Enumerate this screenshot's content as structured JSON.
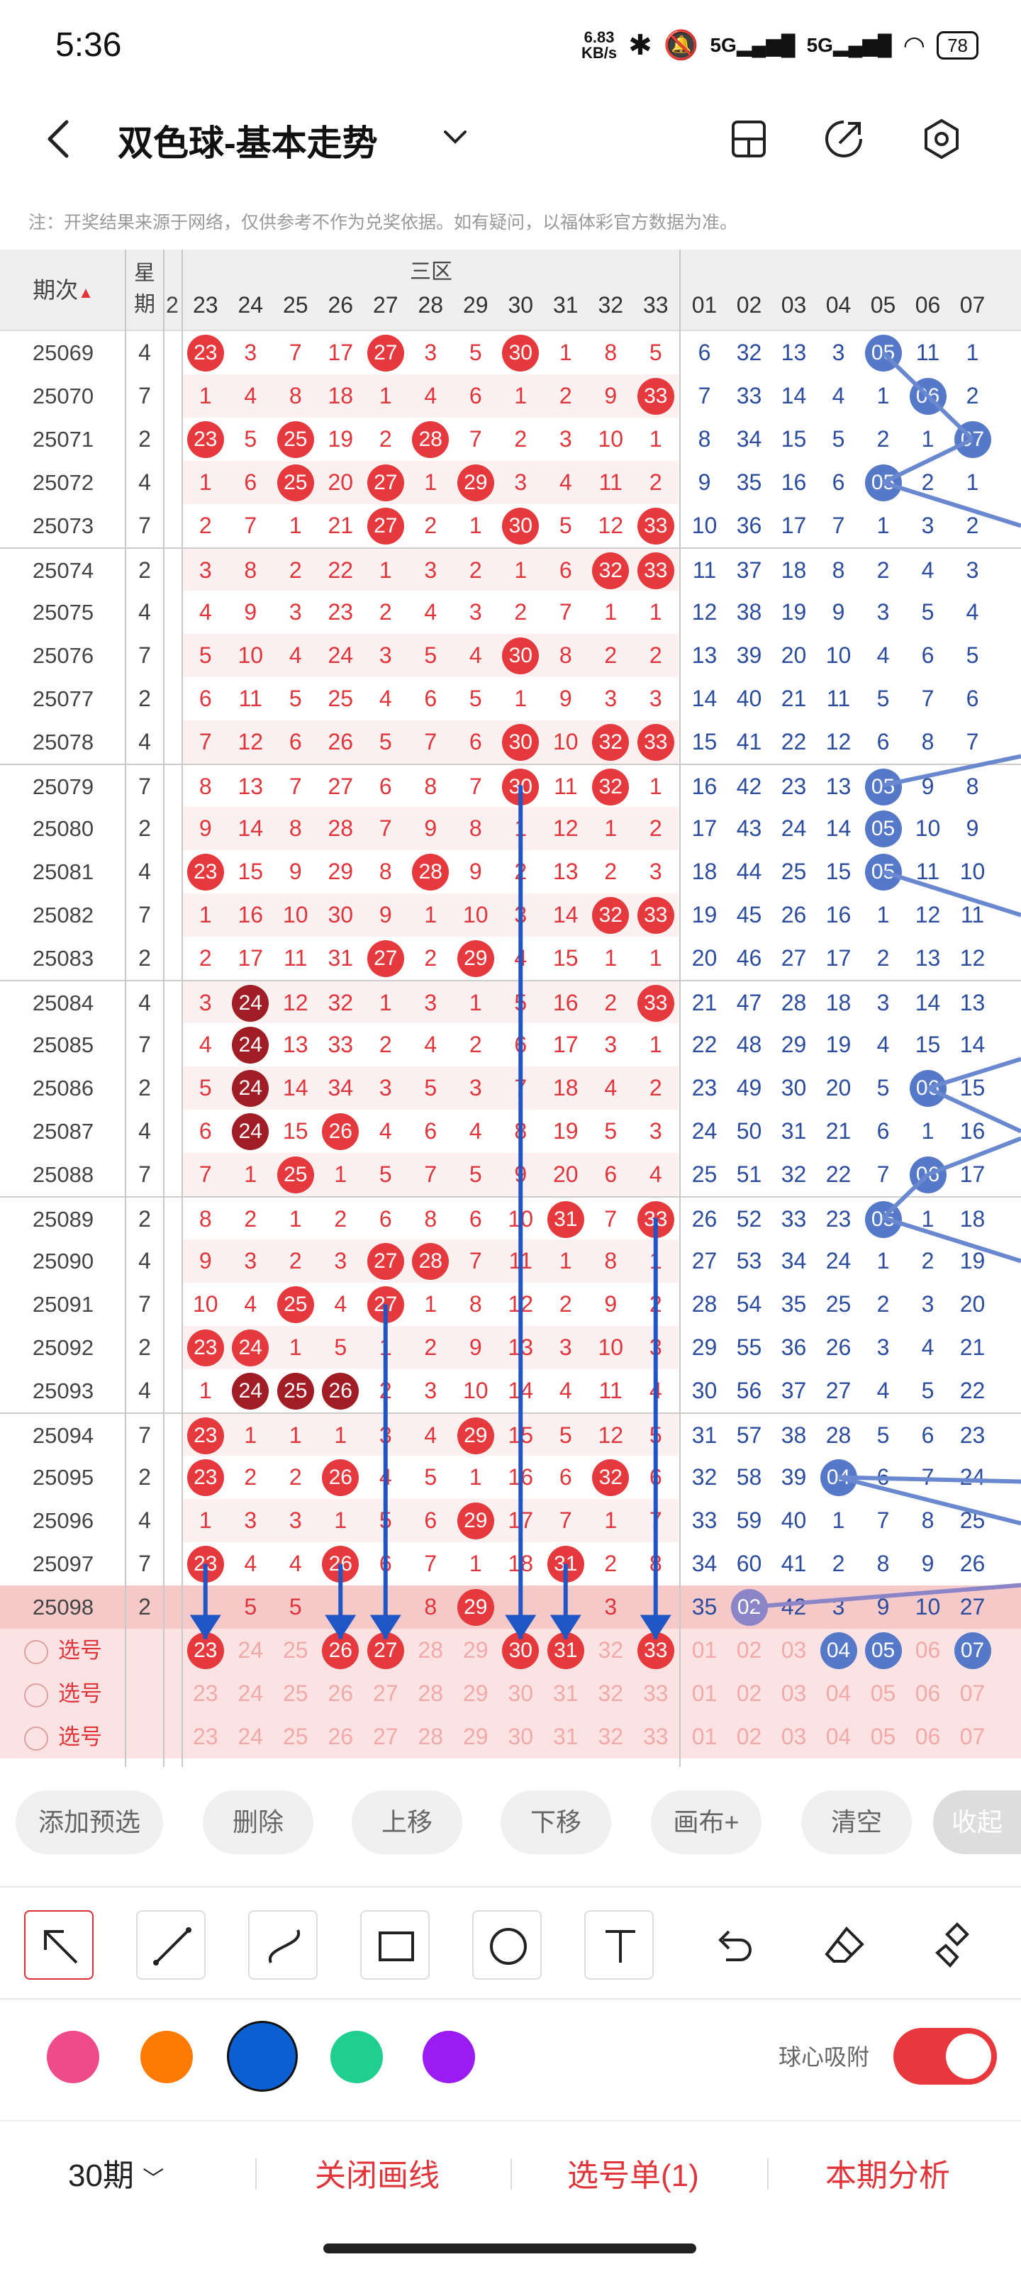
{
  "status_bar": {
    "time": "5:36",
    "net_speed": "6.83\nKB/s",
    "battery": "78"
  },
  "header": {
    "title": "双色球-基本走势"
  },
  "notice": "注：开奖结果来源于网络，仅供参考不作为兑奖依据。如有疑问，以福体彩官方数据为准。",
  "table": {
    "col_period": "期次",
    "col_week": "星期",
    "zone_label": "三区",
    "red_columns": [
      "23",
      "24",
      "25",
      "26",
      "27",
      "28",
      "29",
      "30",
      "31",
      "32",
      "33"
    ],
    "blue_columns": [
      "01",
      "02",
      "03",
      "04",
      "05",
      "06",
      "07"
    ],
    "partial_left": "2",
    "rows": [
      {
        "period": "25069",
        "week": "4",
        "red": [
          "b:23",
          "3",
          "7",
          "17",
          "b:27",
          "3",
          "5",
          "b:30",
          "1",
          "8",
          "5"
        ],
        "blue": [
          "6",
          "32",
          "13",
          "3",
          "b:05",
          "11",
          "1"
        ]
      },
      {
        "period": "25070",
        "week": "7",
        "red": [
          "1",
          "4",
          "8",
          "18",
          "1",
          "4",
          "6",
          "1",
          "2",
          "9",
          "b:33"
        ],
        "blue": [
          "7",
          "33",
          "14",
          "4",
          "1",
          "b:06",
          "2"
        ]
      },
      {
        "period": "25071",
        "week": "2",
        "red": [
          "b:23",
          "5",
          "b:25",
          "19",
          "2",
          "b:28",
          "7",
          "2",
          "3",
          "10",
          "1"
        ],
        "blue": [
          "8",
          "34",
          "15",
          "5",
          "2",
          "1",
          "b:07"
        ]
      },
      {
        "period": "25072",
        "week": "4",
        "red": [
          "1",
          "6",
          "b:25",
          "20",
          "b:27",
          "1",
          "b:29",
          "3",
          "4",
          "11",
          "2"
        ],
        "blue": [
          "9",
          "35",
          "16",
          "6",
          "b:05",
          "2",
          "1"
        ]
      },
      {
        "period": "25073",
        "week": "7",
        "red": [
          "2",
          "7",
          "1",
          "21",
          "b:27",
          "2",
          "1",
          "b:30",
          "5",
          "12",
          "b:33"
        ],
        "blue": [
          "10",
          "36",
          "17",
          "7",
          "1",
          "3",
          "2"
        ]
      },
      {
        "period": "25074",
        "week": "2",
        "red": [
          "3",
          "8",
          "2",
          "22",
          "1",
          "3",
          "2",
          "1",
          "6",
          "b:32",
          "b:33"
        ],
        "blue": [
          "11",
          "37",
          "18",
          "8",
          "2",
          "4",
          "3"
        ]
      },
      {
        "period": "25075",
        "week": "4",
        "red": [
          "4",
          "9",
          "3",
          "23",
          "2",
          "4",
          "3",
          "2",
          "7",
          "1",
          "1"
        ],
        "blue": [
          "12",
          "38",
          "19",
          "9",
          "3",
          "5",
          "4"
        ]
      },
      {
        "period": "25076",
        "week": "7",
        "red": [
          "5",
          "10",
          "4",
          "24",
          "3",
          "5",
          "4",
          "b:30",
          "8",
          "2",
          "2"
        ],
        "blue": [
          "13",
          "39",
          "20",
          "10",
          "4",
          "6",
          "5"
        ]
      },
      {
        "period": "25077",
        "week": "2",
        "red": [
          "6",
          "11",
          "5",
          "25",
          "4",
          "6",
          "5",
          "1",
          "9",
          "3",
          "3"
        ],
        "blue": [
          "14",
          "40",
          "21",
          "11",
          "5",
          "7",
          "6"
        ]
      },
      {
        "period": "25078",
        "week": "4",
        "red": [
          "7",
          "12",
          "6",
          "26",
          "5",
          "7",
          "6",
          "b:30",
          "10",
          "b:32",
          "b:33"
        ],
        "blue": [
          "15",
          "41",
          "22",
          "12",
          "6",
          "8",
          "7"
        ]
      },
      {
        "period": "25079",
        "week": "7",
        "red": [
          "8",
          "13",
          "7",
          "27",
          "6",
          "8",
          "7",
          "b:30",
          "11",
          "b:32",
          "1"
        ],
        "blue": [
          "16",
          "42",
          "23",
          "13",
          "b:05",
          "9",
          "8"
        ]
      },
      {
        "period": "25080",
        "week": "2",
        "red": [
          "9",
          "14",
          "8",
          "28",
          "7",
          "9",
          "8",
          "1",
          "12",
          "1",
          "2"
        ],
        "blue": [
          "17",
          "43",
          "24",
          "14",
          "b:05",
          "10",
          "9"
        ]
      },
      {
        "period": "25081",
        "week": "4",
        "red": [
          "b:23",
          "15",
          "9",
          "29",
          "8",
          "b:28",
          "9",
          "2",
          "13",
          "2",
          "3"
        ],
        "blue": [
          "18",
          "44",
          "25",
          "15",
          "b:05",
          "11",
          "10"
        ]
      },
      {
        "period": "25082",
        "week": "7",
        "red": [
          "1",
          "16",
          "10",
          "30",
          "9",
          "1",
          "10",
          "3",
          "14",
          "b:32",
          "b:33"
        ],
        "blue": [
          "19",
          "45",
          "26",
          "16",
          "1",
          "12",
          "11"
        ]
      },
      {
        "period": "25083",
        "week": "2",
        "red": [
          "2",
          "17",
          "11",
          "31",
          "b:27",
          "2",
          "b:29",
          "4",
          "15",
          "1",
          "1"
        ],
        "blue": [
          "20",
          "46",
          "27",
          "17",
          "2",
          "13",
          "12"
        ]
      },
      {
        "period": "25084",
        "week": "4",
        "red": [
          "3",
          "d:24",
          "12",
          "32",
          "1",
          "3",
          "1",
          "5",
          "16",
          "2",
          "b:33"
        ],
        "blue": [
          "21",
          "47",
          "28",
          "18",
          "3",
          "14",
          "13"
        ]
      },
      {
        "period": "25085",
        "week": "7",
        "red": [
          "4",
          "d:24",
          "13",
          "33",
          "2",
          "4",
          "2",
          "6",
          "17",
          "3",
          "1"
        ],
        "blue": [
          "22",
          "48",
          "29",
          "19",
          "4",
          "15",
          "14"
        ]
      },
      {
        "period": "25086",
        "week": "2",
        "red": [
          "5",
          "d:24",
          "14",
          "34",
          "3",
          "5",
          "3",
          "7",
          "18",
          "4",
          "2"
        ],
        "blue": [
          "23",
          "49",
          "30",
          "20",
          "5",
          "b:06",
          "15"
        ]
      },
      {
        "period": "25087",
        "week": "4",
        "red": [
          "6",
          "d:24",
          "15",
          "b:26",
          "4",
          "6",
          "4",
          "8",
          "19",
          "5",
          "3"
        ],
        "blue": [
          "24",
          "50",
          "31",
          "21",
          "6",
          "1",
          "16"
        ]
      },
      {
        "period": "25088",
        "week": "7",
        "red": [
          "7",
          "1",
          "b:25",
          "1",
          "5",
          "7",
          "5",
          "9",
          "20",
          "6",
          "4"
        ],
        "blue": [
          "25",
          "51",
          "32",
          "22",
          "7",
          "b:06",
          "17"
        ]
      },
      {
        "period": "25089",
        "week": "2",
        "red": [
          "8",
          "2",
          "1",
          "2",
          "6",
          "8",
          "6",
          "10",
          "b:31",
          "7",
          "b:33"
        ],
        "blue": [
          "26",
          "52",
          "33",
          "23",
          "b:05",
          "1",
          "18"
        ]
      },
      {
        "period": "25090",
        "week": "4",
        "red": [
          "9",
          "3",
          "2",
          "3",
          "b:27",
          "b:28",
          "7",
          "11",
          "1",
          "8",
          "1"
        ],
        "blue": [
          "27",
          "53",
          "34",
          "24",
          "1",
          "2",
          "19"
        ]
      },
      {
        "period": "25091",
        "week": "7",
        "red": [
          "10",
          "4",
          "b:25",
          "4",
          "b:27",
          "1",
          "8",
          "12",
          "2",
          "9",
          "2"
        ],
        "blue": [
          "28",
          "54",
          "35",
          "25",
          "2",
          "3",
          "20"
        ]
      },
      {
        "period": "25092",
        "week": "2",
        "red": [
          "b:23",
          "b:24",
          "1",
          "5",
          "1",
          "2",
          "9",
          "13",
          "3",
          "10",
          "3"
        ],
        "blue": [
          "29",
          "55",
          "36",
          "26",
          "3",
          "4",
          "21"
        ]
      },
      {
        "period": "25093",
        "week": "4",
        "red": [
          "1",
          "d:24",
          "d:25",
          "d:26",
          "2",
          "3",
          "10",
          "14",
          "4",
          "11",
          "4"
        ],
        "blue": [
          "30",
          "56",
          "37",
          "27",
          "4",
          "5",
          "22"
        ]
      },
      {
        "period": "25094",
        "week": "7",
        "red": [
          "b:23",
          "1",
          "1",
          "1",
          "3",
          "4",
          "b:29",
          "15",
          "5",
          "12",
          "5"
        ],
        "blue": [
          "31",
          "57",
          "38",
          "28",
          "5",
          "6",
          "23"
        ]
      },
      {
        "period": "25095",
        "week": "2",
        "red": [
          "b:23",
          "2",
          "2",
          "b:26",
          "4",
          "5",
          "1",
          "16",
          "6",
          "b:32",
          "6"
        ],
        "blue": [
          "32",
          "58",
          "39",
          "b:04",
          "6",
          "7",
          "24"
        ]
      },
      {
        "period": "25096",
        "week": "4",
        "red": [
          "1",
          "3",
          "3",
          "1",
          "5",
          "6",
          "b:29",
          "17",
          "7",
          "1",
          "7"
        ],
        "blue": [
          "33",
          "59",
          "40",
          "1",
          "7",
          "8",
          "25"
        ]
      },
      {
        "period": "25097",
        "week": "7",
        "red": [
          "b:23",
          "4",
          "4",
          "b:26",
          "6",
          "7",
          "1",
          "18",
          "b:31",
          "2",
          "8"
        ],
        "blue": [
          "34",
          "60",
          "41",
          "2",
          "8",
          "9",
          "26"
        ]
      },
      {
        "period": "25098",
        "week": "2",
        "red": [
          "",
          "5",
          "5",
          "",
          "",
          "8",
          "b:29",
          "",
          "",
          "3",
          ""
        ],
        "blue": [
          "35",
          "p:02",
          "42",
          "3",
          "9",
          "10",
          "27"
        ]
      }
    ],
    "pick_rows": [
      {
        "label": "选号",
        "red": [
          "b:23",
          "24",
          "25",
          "b:26",
          "b:27",
          "28",
          "29",
          "b:30",
          "b:31",
          "32",
          "b:33"
        ],
        "blue": [
          "01",
          "02",
          "03",
          "b:04",
          "b:05",
          "06",
          "b:07"
        ]
      },
      {
        "label": "选号",
        "red": [
          "23",
          "24",
          "25",
          "26",
          "27",
          "28",
          "29",
          "30",
          "31",
          "32",
          "33"
        ],
        "blue": [
          "01",
          "02",
          "03",
          "04",
          "05",
          "06",
          "07"
        ]
      },
      {
        "label": "选号",
        "red": [
          "23",
          "24",
          "25",
          "26",
          "27",
          "28",
          "29",
          "30",
          "31",
          "32",
          "33"
        ],
        "blue": [
          "01",
          "02",
          "03",
          "04",
          "05",
          "06",
          "07"
        ]
      }
    ]
  },
  "actions": {
    "add_preselect": "添加预选",
    "delete": "删除",
    "move_up": "上移",
    "move_down": "下移",
    "canvas_plus": "画布+",
    "clear": "清空",
    "collapse": "收起"
  },
  "draw_tools": [
    "arrow-select",
    "line",
    "curve",
    "rectangle",
    "circle",
    "text",
    "undo",
    "eraser",
    "clear-all"
  ],
  "colors": [
    "#ef4a8a",
    "#ff7a00",
    "#0b5fd1",
    "#1fcf8f",
    "#9a1cf2"
  ],
  "magnet": {
    "label": "球心吸附",
    "on": true
  },
  "bottom_bar": {
    "periods": "30期",
    "close_lines": "关闭画线",
    "pick_list": "选号单(1)",
    "analysis": "本期分析"
  }
}
